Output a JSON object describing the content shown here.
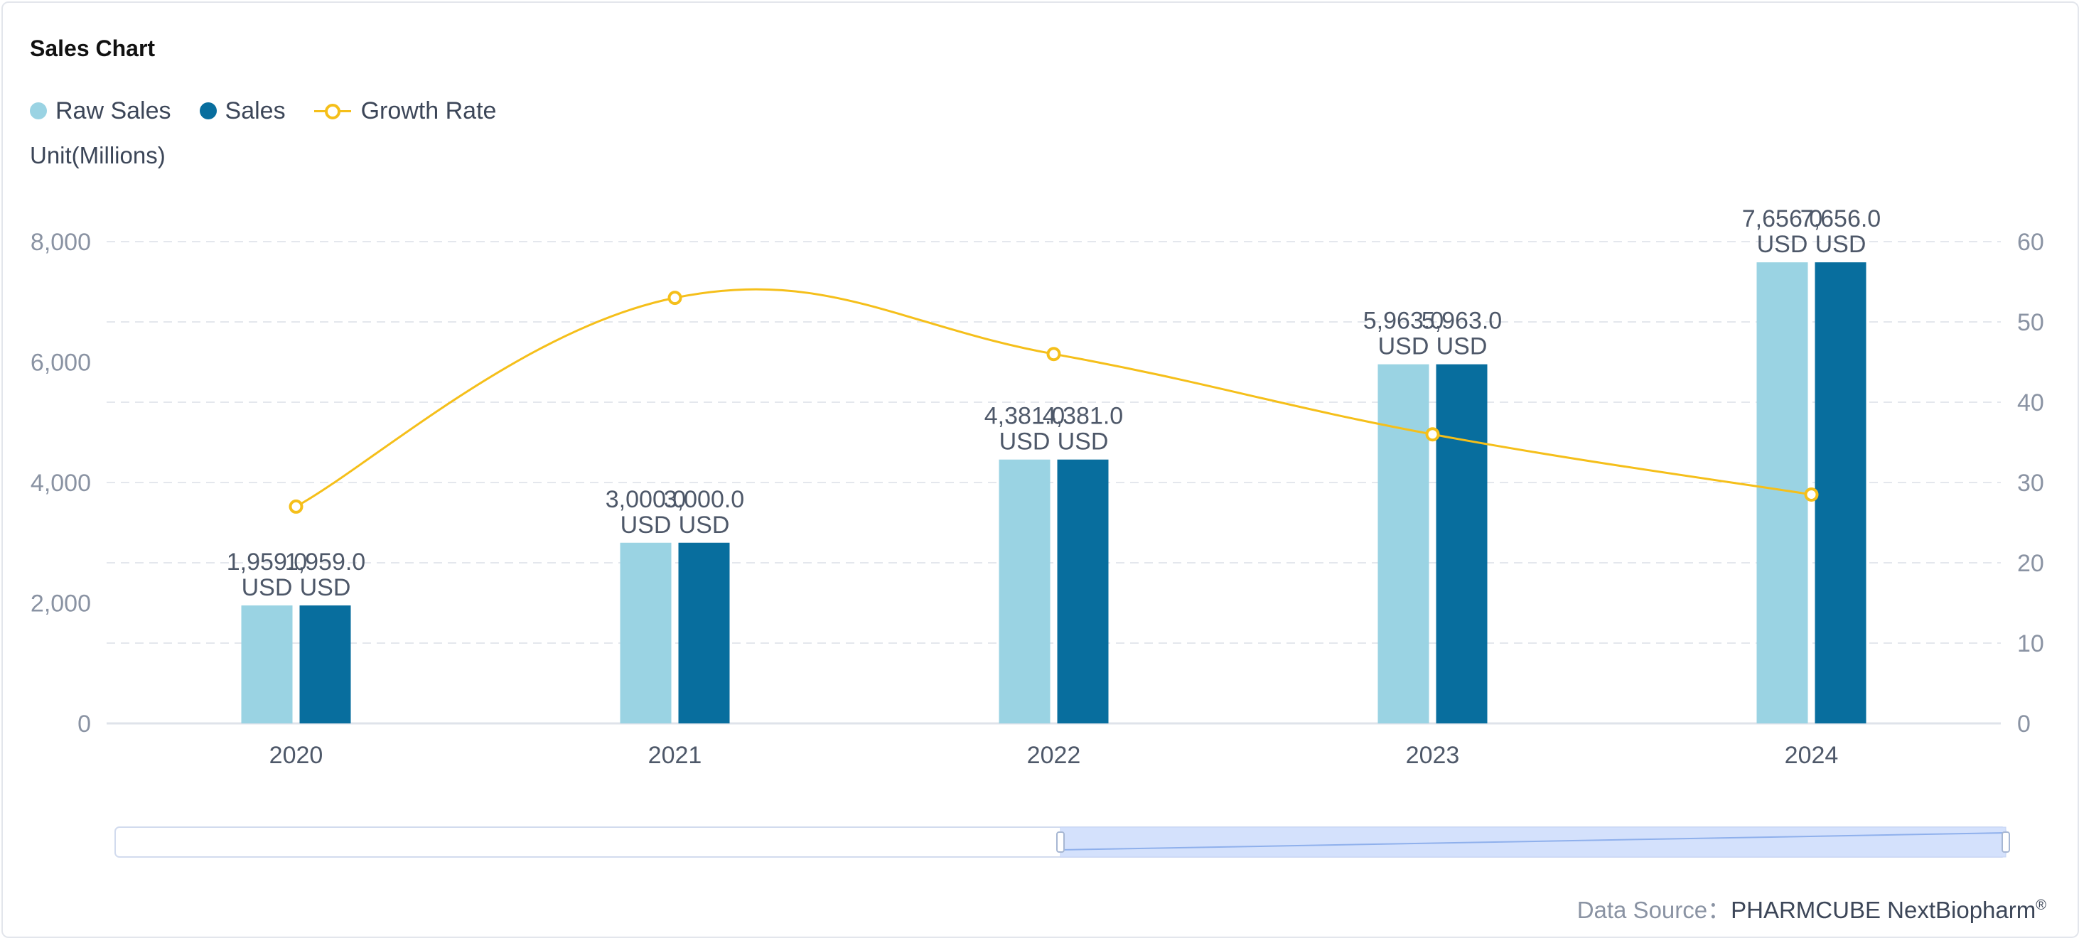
{
  "title": "Sales Chart",
  "unit_label": "Unit(Millions)",
  "source": {
    "label": "Data Source：",
    "brand": "PHARMCUBE NextBiopharm",
    "mark": "®"
  },
  "colors": {
    "raw_sales": "#9ad3e3",
    "sales": "#086e9e",
    "growth_rate": "#f5bf1a",
    "grid": "#e4e7ed",
    "axis_text": "#8a93a3",
    "label_text": "#4e5869"
  },
  "chart_data": {
    "type": "bar",
    "title": "Sales Chart",
    "xlabel": "",
    "ylabel": "Unit(Millions)",
    "categories": [
      "2020",
      "2021",
      "2022",
      "2023",
      "2024"
    ],
    "series": [
      {
        "name": "Raw Sales",
        "type": "bar",
        "axis": "left",
        "values": [
          1959.0,
          3000.0,
          4381.0,
          5963.0,
          7656.0
        ]
      },
      {
        "name": "Sales",
        "type": "bar",
        "axis": "left",
        "values": [
          1959.0,
          3000.0,
          4381.0,
          5963.0,
          7656.0
        ]
      },
      {
        "name": "Growth Rate",
        "type": "line",
        "axis": "right",
        "values": [
          27,
          53,
          46,
          36,
          28.5
        ]
      }
    ],
    "data_labels": {
      "Raw Sales": [
        [
          "1,959.0",
          "USD"
        ],
        [
          "3,000.0",
          "USD"
        ],
        [
          "4,381.0",
          "USD"
        ],
        [
          "5,963.0",
          "USD"
        ],
        [
          "7,656.0",
          "USD"
        ]
      ],
      "Sales": [
        [
          "1,959.0",
          "USD"
        ],
        [
          "3,000.0",
          "USD"
        ],
        [
          "4,381.0",
          "USD"
        ],
        [
          "5,963.0",
          "USD"
        ],
        [
          "7,656.0",
          "USD"
        ]
      ]
    },
    "y_left": {
      "ylim": [
        0,
        8000
      ],
      "ticks": [
        "0",
        "2,000",
        "4,000",
        "6,000",
        "8,000"
      ],
      "tick_values": [
        0,
        2000,
        4000,
        6000,
        8000
      ]
    },
    "y_right": {
      "ylim": [
        0,
        60
      ],
      "ticks": [
        "0",
        "10",
        "20",
        "30",
        "40",
        "50",
        "60"
      ],
      "tick_values": [
        0,
        10,
        20,
        30,
        40,
        50,
        60
      ]
    },
    "grid": true,
    "legend": "top-left",
    "data_zoom": {
      "range": [
        0,
        1
      ]
    }
  }
}
